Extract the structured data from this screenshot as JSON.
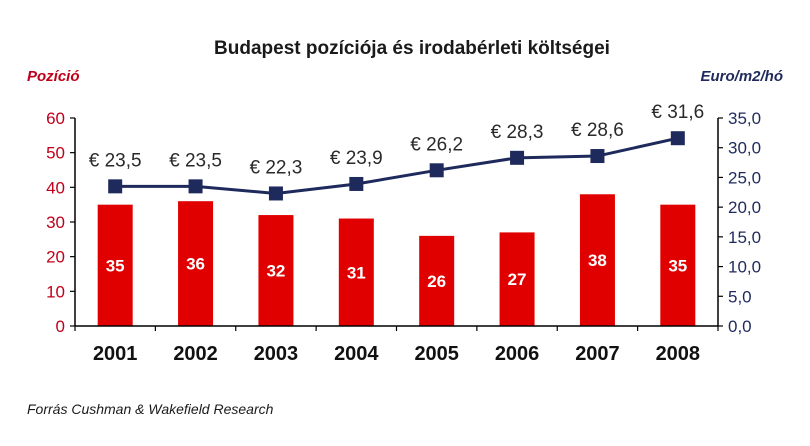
{
  "chart_data": {
    "type": "bar",
    "title": "Budapest pozíciója és irodabérleti költségei",
    "categories": [
      "2001",
      "2002",
      "2003",
      "2004",
      "2005",
      "2006",
      "2007",
      "2008"
    ],
    "series": [
      {
        "name": "",
        "type": "bar",
        "axis": "left",
        "values": [
          35,
          36,
          32,
          31,
          26,
          27,
          38,
          35
        ],
        "labels": [
          "35",
          "36",
          "32",
          "31",
          "26",
          "27",
          "38",
          "35"
        ]
      },
      {
        "name": "",
        "type": "line",
        "axis": "right",
        "values": [
          23.5,
          23.5,
          22.3,
          23.9,
          26.2,
          28.3,
          28.6,
          31.6
        ],
        "labels": [
          "€ 23,5",
          "€ 23,5",
          "€ 22,3",
          "€ 23,9",
          "€ 26,2",
          "€ 28,3",
          "€ 28,6",
          "€ 31,6"
        ]
      }
    ],
    "left_axis": {
      "label": "Pozíció",
      "ylim": [
        0,
        60
      ],
      "ticks": [
        "0",
        "10",
        "20",
        "30",
        "40",
        "50",
        "60"
      ]
    },
    "right_axis": {
      "label": "Euro/m2/hó",
      "ylim": [
        0,
        35
      ],
      "ticks": [
        "0,0",
        "5,0",
        "10,0",
        "15,0",
        "20,0",
        "25,0",
        "30,0",
        "35,0"
      ]
    },
    "grid": false,
    "legend": "none",
    "source": "Forrás Cushman & Wakefield Research",
    "colors": {
      "bar": "#e00000",
      "line": "#1f2a5c",
      "left_axis": "#c0001a",
      "right_axis": "#1f2a5c"
    }
  }
}
